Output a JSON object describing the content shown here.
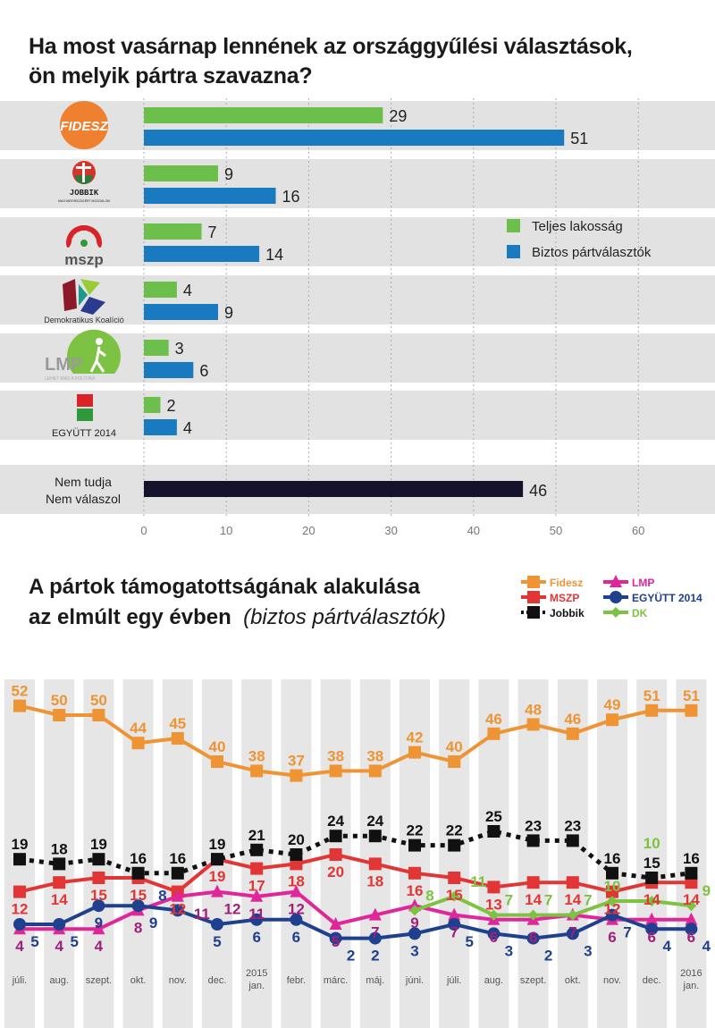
{
  "title1_line1": "Ha most vasárnap lennének az országgyűlési választások,",
  "title1_line2": "ön melyik pártra szavazna?",
  "title2_line1": "A pártok támogatottságának alakulása",
  "title2_line2": "az elmúlt egy évben",
  "title2_sub": "(biztos pártválasztók)",
  "chart_data": [
    {
      "type": "bar",
      "orientation": "horizontal",
      "categories": [
        "FIDESZ",
        "JOBBIK",
        "mszp",
        "Demokratikus Koalíció",
        "LMP",
        "EGYÜTT 2014",
        "Nem tudja Nem válaszol"
      ],
      "category_sublabels": {
        "JOBBIK": "MAGYARORSZÁGÉRT MOZGALOM",
        "LMP": "LEHET MÁS A POLITIKA"
      },
      "series": [
        {
          "name": "Teljes lakosság",
          "color": "#6dbf4b",
          "values": [
            29,
            9,
            7,
            4,
            3,
            2,
            null
          ]
        },
        {
          "name": "Biztos pártválasztók",
          "color": "#1a7abf",
          "values": [
            51,
            16,
            14,
            9,
            6,
            4,
            null
          ]
        },
        {
          "name": "",
          "color": "#14132b",
          "values": [
            null,
            null,
            null,
            null,
            null,
            null,
            46
          ]
        }
      ],
      "xlim": [
        0,
        60
      ],
      "xticks": [
        0,
        10,
        20,
        30,
        40,
        50,
        60
      ],
      "grid": true,
      "legend_placement": "right"
    },
    {
      "type": "line",
      "categories": [
        "júli.",
        "aug.",
        "szept.",
        "okt.",
        "nov.",
        "dec.",
        "2015 jan.",
        "febr.",
        "márc.",
        "máj.",
        "júni.",
        "júli.",
        "aug.",
        "szept.",
        "okt.",
        "nov.",
        "dec.",
        "2016 jan."
      ],
      "legend_placement": "top-right",
      "series": [
        {
          "name": "Fidesz",
          "color": "#ee9434",
          "marker": "square",
          "values": [
            52,
            50,
            50,
            44,
            45,
            40,
            38,
            37,
            38,
            38,
            42,
            40,
            46,
            48,
            46,
            49,
            51,
            51
          ]
        },
        {
          "name": "MSZP",
          "color": "#e23535",
          "marker": "square",
          "values": [
            12,
            14,
            15,
            15,
            12,
            19,
            17,
            18,
            20,
            18,
            16,
            15,
            13,
            14,
            14,
            12,
            14,
            14
          ]
        },
        {
          "name": "Jobbik",
          "color": "#111111",
          "marker": "square",
          "dashed": true,
          "values": [
            19,
            18,
            19,
            16,
            16,
            19,
            21,
            20,
            24,
            24,
            22,
            22,
            25,
            23,
            23,
            16,
            15,
            16
          ]
        },
        {
          "name": "LMP",
          "color": "#e0279a",
          "marker": "triangle",
          "values": [
            4,
            4,
            4,
            8,
            11,
            12,
            11,
            12,
            5,
            7,
            9,
            7,
            6,
            6,
            7,
            6,
            6,
            6
          ]
        },
        {
          "name": "EGYÜTT 2014",
          "color": "#1f3f8f",
          "marker": "circle",
          "values": [
            5,
            5,
            9,
            9,
            8,
            5,
            6,
            6,
            2,
            2,
            3,
            5,
            3,
            2,
            3,
            7,
            4,
            4
          ]
        },
        {
          "name": "DK",
          "color": "#7dc242",
          "marker": "diamond",
          "values": [
            null,
            null,
            null,
            null,
            null,
            null,
            null,
            null,
            null,
            null,
            8,
            11,
            7,
            7,
            7,
            10,
            10,
            9
          ]
        }
      ]
    }
  ]
}
